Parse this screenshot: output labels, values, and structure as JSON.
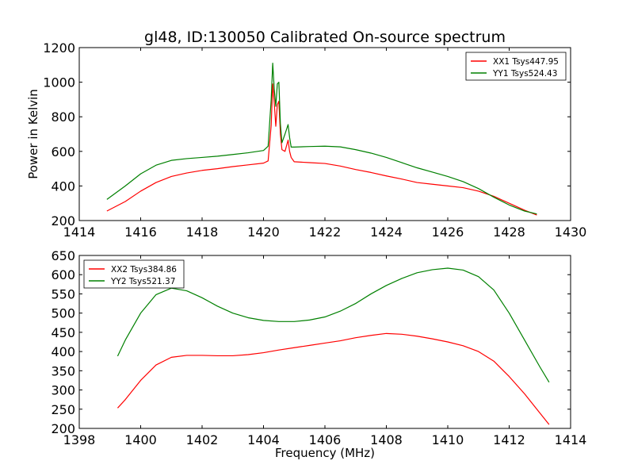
{
  "figure": {
    "title": "gl48, ID:130050 Calibrated On-source spectrum"
  },
  "chart_data": [
    {
      "type": "line",
      "title": "gl48, ID:130050 Calibrated On-source spectrum",
      "xlabel": "",
      "ylabel": "Power in Kelvin",
      "xlim": [
        1414,
        1430
      ],
      "ylim": [
        200,
        1200
      ],
      "xticks": [
        1414,
        1416,
        1418,
        1420,
        1422,
        1424,
        1426,
        1428,
        1430
      ],
      "yticks": [
        200,
        400,
        600,
        800,
        1000,
        1200
      ],
      "grid": false,
      "legend_position": "top-right",
      "series": [
        {
          "name": "XX1 Tsys447.95",
          "color": "#ff0000",
          "x": [
            1414.9,
            1415.5,
            1416.0,
            1416.5,
            1417.0,
            1417.5,
            1418.0,
            1418.5,
            1419.0,
            1419.5,
            1420.0,
            1420.15,
            1420.25,
            1420.3,
            1420.35,
            1420.4,
            1420.45,
            1420.5,
            1420.55,
            1420.6,
            1420.7,
            1420.8,
            1420.85,
            1420.9,
            1421.0,
            1421.5,
            1422.0,
            1422.5,
            1423.0,
            1423.5,
            1424.0,
            1424.5,
            1425.0,
            1425.5,
            1426.0,
            1426.5,
            1427.0,
            1427.5,
            1428.0,
            1428.5,
            1428.9
          ],
          "values": [
            255,
            310,
            370,
            420,
            455,
            475,
            490,
            500,
            512,
            522,
            532,
            545,
            750,
            990,
            880,
            745,
            870,
            890,
            700,
            610,
            600,
            665,
            600,
            565,
            540,
            535,
            530,
            515,
            495,
            478,
            458,
            440,
            420,
            410,
            400,
            390,
            370,
            340,
            300,
            260,
            232
          ]
        },
        {
          "name": "YY1 Tsys524.43",
          "color": "#008000",
          "x": [
            1414.9,
            1415.5,
            1416.0,
            1416.5,
            1417.0,
            1417.5,
            1418.0,
            1418.5,
            1419.0,
            1419.5,
            1420.0,
            1420.15,
            1420.25,
            1420.3,
            1420.35,
            1420.4,
            1420.45,
            1420.5,
            1420.55,
            1420.6,
            1420.7,
            1420.8,
            1420.85,
            1420.9,
            1421.0,
            1421.5,
            1422.0,
            1422.5,
            1423.0,
            1423.5,
            1424.0,
            1424.5,
            1425.0,
            1425.5,
            1426.0,
            1426.5,
            1427.0,
            1427.5,
            1428.0,
            1428.5,
            1428.9
          ],
          "values": [
            322,
            400,
            470,
            520,
            548,
            558,
            565,
            572,
            582,
            592,
            605,
            630,
            900,
            1110,
            960,
            860,
            990,
            1000,
            760,
            650,
            700,
            755,
            680,
            625,
            625,
            628,
            630,
            626,
            610,
            590,
            565,
            535,
            505,
            480,
            455,
            425,
            385,
            335,
            290,
            255,
            238
          ]
        }
      ]
    },
    {
      "type": "line",
      "title": "",
      "xlabel": "Frequency (MHz)",
      "ylabel": "",
      "xlim": [
        1398,
        1414
      ],
      "ylim": [
        200,
        650
      ],
      "xticks": [
        1398,
        1400,
        1402,
        1404,
        1406,
        1408,
        1410,
        1412,
        1414
      ],
      "yticks": [
        200,
        250,
        300,
        350,
        400,
        450,
        500,
        550,
        600,
        650
      ],
      "grid": false,
      "legend_position": "top-left",
      "series": [
        {
          "name": "XX2 Tsys384.86",
          "color": "#ff0000",
          "x": [
            1399.25,
            1399.5,
            1400.0,
            1400.5,
            1401.0,
            1401.5,
            1402.0,
            1402.5,
            1403.0,
            1403.5,
            1404.0,
            1404.5,
            1405.0,
            1405.5,
            1406.0,
            1406.5,
            1407.0,
            1407.5,
            1408.0,
            1408.5,
            1409.0,
            1409.5,
            1410.0,
            1410.5,
            1411.0,
            1411.5,
            1412.0,
            1412.5,
            1413.0,
            1413.3
          ],
          "values": [
            253,
            275,
            325,
            365,
            385,
            390,
            390,
            389,
            389,
            392,
            397,
            404,
            410,
            416,
            422,
            428,
            436,
            442,
            447,
            445,
            440,
            433,
            425,
            415,
            400,
            375,
            335,
            290,
            240,
            210
          ]
        },
        {
          "name": "YY2 Tsys521.37",
          "color": "#008000",
          "x": [
            1399.25,
            1399.5,
            1400.0,
            1400.5,
            1401.0,
            1401.5,
            1402.0,
            1402.5,
            1403.0,
            1403.5,
            1404.0,
            1404.5,
            1405.0,
            1405.5,
            1406.0,
            1406.5,
            1407.0,
            1407.5,
            1408.0,
            1408.5,
            1409.0,
            1409.5,
            1410.0,
            1410.5,
            1411.0,
            1411.5,
            1412.0,
            1412.5,
            1413.0,
            1413.3
          ],
          "values": [
            388,
            430,
            500,
            548,
            565,
            558,
            540,
            518,
            500,
            488,
            481,
            478,
            478,
            482,
            490,
            505,
            525,
            550,
            572,
            590,
            605,
            613,
            617,
            612,
            595,
            560,
            500,
            430,
            360,
            320
          ]
        }
      ]
    }
  ]
}
